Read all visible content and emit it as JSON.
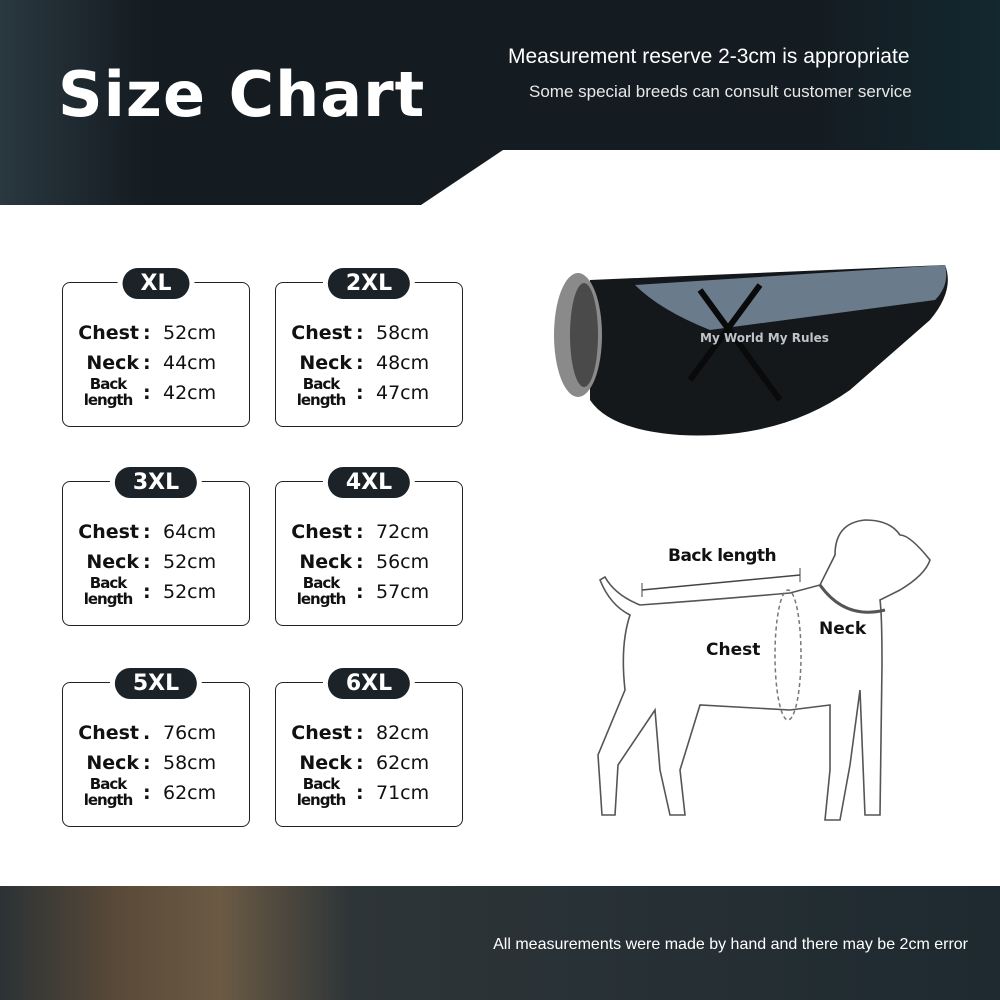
{
  "header": {
    "title": "Size Chart",
    "subtitle1": "Measurement reserve 2-3cm is appropriate",
    "subtitle2": "Some special breeds can consult customer service"
  },
  "sizes": [
    {
      "size": "XL",
      "rows": [
        {
          "label": "Chest",
          "sep": ":",
          "value": "52cm"
        },
        {
          "label": "Neck",
          "sep": ":",
          "value": "44cm"
        },
        {
          "label": "Back length",
          "sep": ":",
          "value": "42cm"
        }
      ]
    },
    {
      "size": "2XL",
      "rows": [
        {
          "label": "Chest",
          "sep": ":",
          "value": "58cm"
        },
        {
          "label": "Neck",
          "sep": ":",
          "value": "48cm"
        },
        {
          "label": "Back length",
          "sep": ":",
          "value": "47cm"
        }
      ]
    },
    {
      "size": "3XL",
      "rows": [
        {
          "label": "Chest",
          "sep": ":",
          "value": "64cm"
        },
        {
          "label": "Neck",
          "sep": ":",
          "value": "52cm"
        },
        {
          "label": "Back length",
          "sep": ":",
          "value": "52cm"
        }
      ]
    },
    {
      "size": "4XL",
      "rows": [
        {
          "label": "Chest",
          "sep": ":",
          "value": "72cm"
        },
        {
          "label": "Neck",
          "sep": ":",
          "value": "56cm"
        },
        {
          "label": "Back length",
          "sep": ":",
          "value": "57cm"
        }
      ]
    },
    {
      "size": "5XL",
      "rows": [
        {
          "label": "Chest",
          "sep": ".",
          "value": "76cm"
        },
        {
          "label": "Neck",
          "sep": ":",
          "value": "58cm"
        },
        {
          "label": "Back length",
          "sep": ":",
          "value": "62cm"
        }
      ]
    },
    {
      "size": "6XL",
      "rows": [
        {
          "label": "Chest",
          "sep": ":",
          "value": "82cm"
        },
        {
          "label": "Neck",
          "sep": ":",
          "value": "62cm"
        },
        {
          "label": "Back length",
          "sep": ":",
          "value": "71cm"
        }
      ]
    }
  ],
  "product": {
    "print_text": "My World My Rules"
  },
  "diagram": {
    "back_length": "Back length",
    "chest": "Chest",
    "neck": "Neck"
  },
  "footer": {
    "note": "All measurements were made by hand and there may be 2cm error"
  }
}
